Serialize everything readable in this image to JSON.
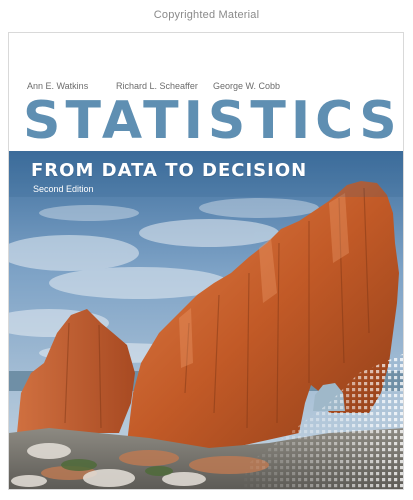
{
  "watermark": "Copyrighted Material",
  "cover": {
    "authors": [
      "Ann E. Watkins",
      "Richard L. Scheaffer",
      "George W. Cobb"
    ],
    "title": "STATISTICS",
    "subtitle": "FROM DATA TO DECISION",
    "edition": "Second Edition"
  },
  "colors": {
    "title": "#5f8fb2",
    "sky": "#7aa0c8",
    "rock": "#c8642e",
    "band": "#2d5e8c"
  }
}
